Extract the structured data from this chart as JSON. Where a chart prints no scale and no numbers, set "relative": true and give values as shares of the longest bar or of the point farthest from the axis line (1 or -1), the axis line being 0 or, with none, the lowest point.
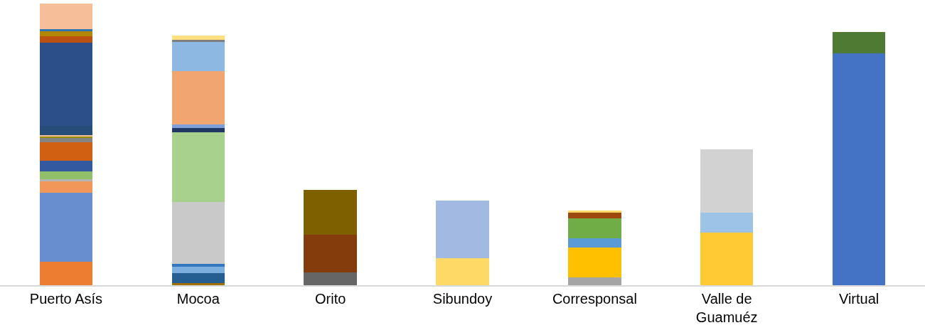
{
  "chart_data": {
    "type": "bar",
    "stacked": true,
    "relative": true,
    "categories": [
      "Puerto Asís",
      "Mocoa",
      "Orito",
      "Sibundoy",
      "Corresponsal",
      "Valle de Guamuéz",
      "Virtual"
    ],
    "series": [
      {
        "values": [
          0.084,
          0.008,
          0.046,
          0.097,
          0.029,
          0.188,
          0.823
        ],
        "colors": [
          "#ed7d31",
          "#9e7000",
          "#666666",
          "#ffd966",
          "#a5a5a5",
          "#ffca33",
          "#4472c4"
        ]
      },
      {
        "values": [
          0.244,
          0.036,
          0.134,
          0.204,
          0.106,
          0.07,
          0.076
        ],
        "colors": [
          "#698ecf",
          "#255e91",
          "#843c0c",
          "#a2b9e1",
          "#ffc000",
          "#9dc3e6",
          "#4e7a33"
        ]
      },
      {
        "values": [
          0.04,
          0.021,
          0.158,
          null,
          0.031,
          0.225,
          null
        ],
        "colors": [
          "#f1975a",
          "#7cafdd",
          "#7f6000",
          null,
          "#5b9bd5",
          "#d2d2d2",
          null
        ]
      },
      {
        "values": [
          0.008,
          0.01,
          null,
          null,
          0.072,
          null,
          null
        ],
        "colors": [
          "#b4b4b4",
          "#3379c2",
          null,
          null,
          "#70ad47",
          null,
          null
        ]
      },
      {
        "values": [
          0.028,
          0.22,
          null,
          null,
          0.021,
          null,
          null
        ],
        "colors": [
          "#8fbf69",
          "#c9c9c9",
          null,
          null,
          "#9e480e",
          null,
          null
        ]
      },
      {
        "values": [
          0.038,
          0.247,
          null,
          null,
          0.005,
          null,
          null
        ],
        "colors": [
          "#335aa1",
          "#a9d18e",
          null,
          null,
          "#ffd966",
          null,
          null
        ]
      },
      {
        "values": [
          0.066,
          0.017,
          null,
          null,
          null,
          null,
          null
        ],
        "colors": [
          "#d26012",
          "#203864",
          null,
          null,
          null,
          null,
          null
        ]
      },
      {
        "values": [
          0.017,
          0.011,
          null,
          null,
          null,
          null,
          null
        ],
        "colors": [
          "#848484",
          "#7f9fd8",
          null,
          null,
          null,
          null,
          null
        ]
      },
      {
        "values": [
          0.003,
          0.189,
          null,
          null,
          null,
          null,
          null
        ],
        "colors": [
          "#9e8f00",
          "#f1a571",
          null,
          null,
          null,
          null,
          null
        ]
      },
      {
        "values": [
          0.005,
          0.104,
          null,
          null,
          null,
          null,
          null
        ],
        "colors": [
          "#f6bf9a",
          "#8db8e1",
          null,
          null,
          null,
          null,
          null
        ]
      },
      {
        "values": [
          0.033,
          0.008,
          null,
          null,
          null,
          null,
          null
        ],
        "colors": [
          "#264e78",
          "#7f7f7f",
          null,
          null,
          null,
          null,
          null
        ]
      },
      {
        "values": [
          0.295,
          0.015,
          null,
          null,
          null,
          null,
          null
        ],
        "colors": [
          "#2c4f8a",
          "#ffdf80",
          null,
          null,
          null,
          null,
          null
        ]
      },
      {
        "values": [
          0.023,
          null,
          null,
          null,
          null,
          null,
          null
        ],
        "colors": [
          "#bb5213",
          null,
          null,
          null,
          null,
          null,
          null
        ]
      },
      {
        "values": [
          0.02,
          null,
          null,
          null,
          null,
          null,
          null
        ],
        "colors": [
          "#b38600",
          null,
          null,
          null,
          null,
          null,
          null
        ]
      },
      {
        "values": [
          0.005,
          null,
          null,
          null,
          null,
          null,
          null
        ],
        "colors": [
          "#2e75b6",
          null,
          null,
          null,
          null,
          null,
          null
        ]
      },
      {
        "values": [
          0.091,
          null,
          null,
          null,
          null,
          null,
          null
        ],
        "colors": [
          "#f6bf9a",
          null,
          null,
          null,
          null,
          null,
          null
        ]
      }
    ]
  }
}
